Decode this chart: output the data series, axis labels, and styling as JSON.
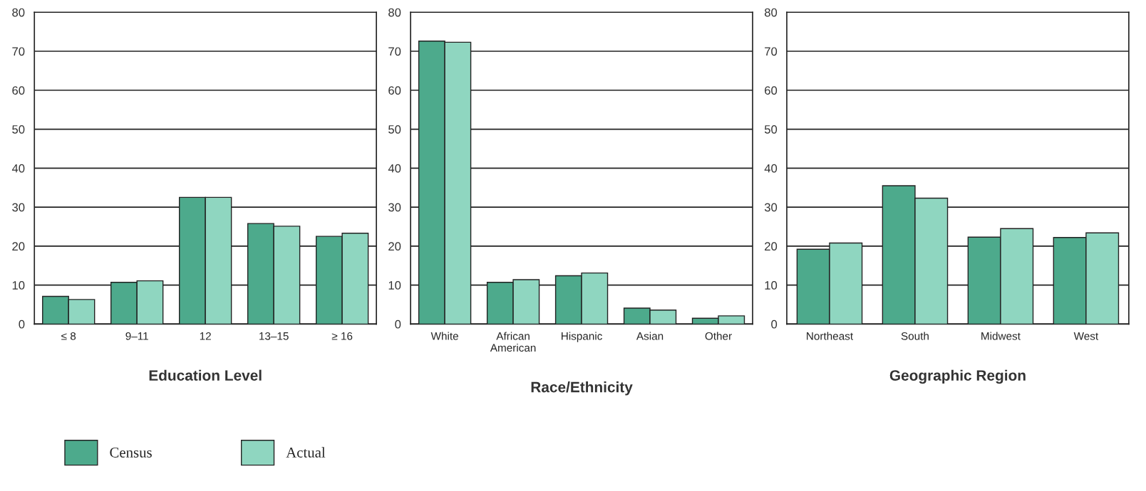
{
  "chart_data": [
    {
      "type": "bar",
      "xlabel": "Education Level",
      "categories": [
        "≤ 8",
        "9–11",
        "12",
        "13–15",
        "≥ 16"
      ],
      "ylim": [
        0,
        80
      ],
      "yticks": [
        0,
        10,
        20,
        30,
        40,
        50,
        60,
        70,
        80
      ],
      "grid": "y",
      "legend": "bottom left",
      "series": [
        {
          "name": "Census",
          "color": "#4daa8c",
          "values": [
            7.1,
            10.7,
            32.5,
            25.8,
            22.5
          ]
        },
        {
          "name": "Actual",
          "color": "#8fd6c0",
          "values": [
            6.3,
            11.1,
            32.5,
            25.1,
            23.3
          ]
        }
      ]
    },
    {
      "type": "bar",
      "xlabel": "Race/Ethnicity",
      "categories": [
        "White",
        "African\nAmerican",
        "Hispanic",
        "Asian",
        "Other"
      ],
      "ylim": [
        0,
        80
      ],
      "yticks": [
        0,
        10,
        20,
        30,
        40,
        50,
        60,
        70,
        80
      ],
      "grid": "y",
      "series": [
        {
          "color": "#4daa8c",
          "values": [
            72.6,
            10.7,
            12.4,
            4.1,
            1.5
          ]
        },
        {
          "color": "#8fd6c0",
          "values": [
            72.3,
            11.4,
            13.1,
            3.6,
            2.1
          ]
        }
      ]
    },
    {
      "type": "bar",
      "xlabel": "Geographic Region",
      "categories": [
        "Northeast",
        "South",
        "Midwest",
        "West"
      ],
      "ylim": [
        0,
        80
      ],
      "yticks": [
        0,
        10,
        20,
        30,
        40,
        50,
        60,
        70,
        80
      ],
      "grid": "y",
      "series": [
        {
          "color": "#4daa8c",
          "values": [
            19.2,
            35.5,
            22.3,
            22.2
          ]
        },
        {
          "color": "#8fd6c0",
          "values": [
            20.8,
            32.3,
            24.5,
            23.4
          ]
        }
      ]
    }
  ]
}
